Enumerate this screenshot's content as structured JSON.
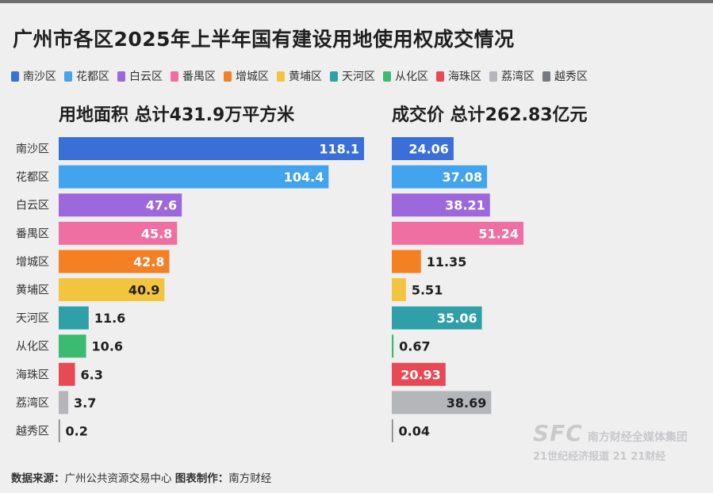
{
  "title": "广州市各区2025年上半年国有建设用地使用权成交情况",
  "source": {
    "label": "数据来源：",
    "text": "广州公共资源交易中心",
    "maker_label": "图表制作：",
    "maker": "南方财经"
  },
  "watermark": {
    "brand": "SFC",
    "group": "南方财经全媒体集团",
    "line2": "21世纪经济报道  21 21财经"
  },
  "chart_data": [
    {
      "type": "bar",
      "orientation": "horizontal",
      "title": "用地面积 总计431.9万平方米",
      "categories": [
        "南沙区",
        "花都区",
        "白云区",
        "番禺区",
        "增城区",
        "黄埔区",
        "天河区",
        "从化区",
        "海珠区",
        "荔湾区",
        "越秀区"
      ],
      "values": [
        118.1,
        104.4,
        47.6,
        45.8,
        42.8,
        40.9,
        11.6,
        10.6,
        6.3,
        3.7,
        0.2
      ],
      "unit": "万平方米"
    },
    {
      "type": "bar",
      "orientation": "horizontal",
      "title": "成交价 总计262.83亿元",
      "categories": [
        "南沙区",
        "花都区",
        "白云区",
        "番禺区",
        "增城区",
        "黄埔区",
        "天河区",
        "从化区",
        "海珠区",
        "荔湾区",
        "越秀区"
      ],
      "values": [
        24.06,
        37.08,
        38.21,
        51.24,
        11.35,
        5.51,
        35.06,
        0.67,
        20.93,
        38.69,
        0.04
      ],
      "unit": "亿元"
    }
  ],
  "legend": [
    "南沙区",
    "花都区",
    "白云区",
    "番禺区",
    "增城区",
    "黄埔区",
    "天河区",
    "从化区",
    "海珠区",
    "荔湾区",
    "越秀区"
  ],
  "colors": {
    "南沙区": "#3b6fd8",
    "花都区": "#42a4ef",
    "白云区": "#9c68db",
    "番禺区": "#ef6fa2",
    "增城区": "#f58024",
    "黄埔区": "#f3c53e",
    "天河区": "#2fa0a7",
    "从化区": "#3bba71",
    "海珠区": "#e74a55",
    "荔湾区": "#b4b6ba",
    "越秀区": "#777a7e"
  }
}
